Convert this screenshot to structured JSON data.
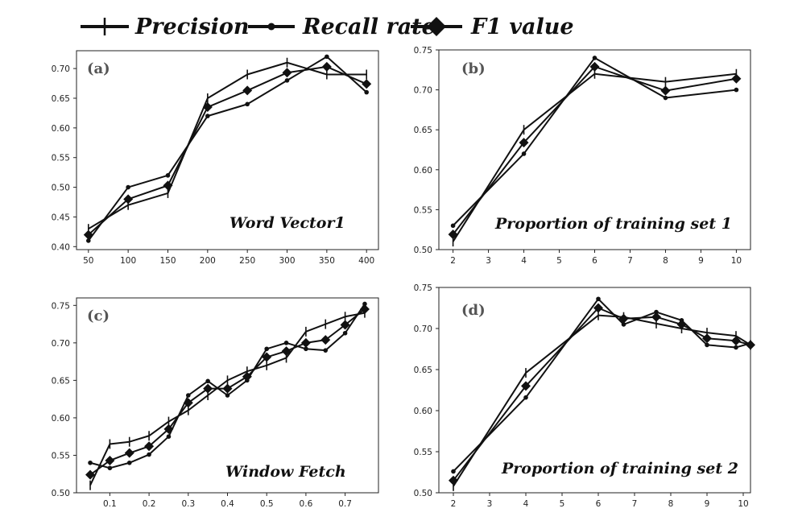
{
  "legend": {
    "precision": "Precision",
    "recall": "Recall rate",
    "f1": "F1 value"
  },
  "chart_data": [
    {
      "type": "line",
      "panel_label": "(a)",
      "title": "Word Vector1",
      "x": [
        50,
        100,
        150,
        200,
        250,
        300,
        350,
        400
      ],
      "xticks": [
        "50",
        "100",
        "150",
        "200",
        "250",
        "300",
        "350",
        "400"
      ],
      "xlim": [
        35,
        415
      ],
      "ylim": [
        0.395,
        0.73
      ],
      "yticks": [
        "0.40",
        "0.45",
        "0.50",
        "0.55",
        "0.60",
        "0.65",
        "0.70"
      ],
      "series": [
        {
          "name": "Precision",
          "values": [
            0.43,
            0.47,
            0.49,
            0.65,
            0.69,
            0.71,
            0.69,
            0.69
          ]
        },
        {
          "name": "Recall rate",
          "values": [
            0.41,
            0.5,
            0.52,
            0.62,
            0.64,
            0.68,
            0.72,
            0.66
          ]
        },
        {
          "name": "F1 value",
          "values": [
            0.42,
            0.48,
            0.503,
            0.635,
            0.663,
            0.693,
            0.703,
            0.674
          ]
        }
      ]
    },
    {
      "type": "line",
      "panel_label": "(b)",
      "title": "Proportion of training set 1",
      "x": [
        2,
        4,
        6,
        8,
        10
      ],
      "xticks": [
        "2",
        "3",
        "4",
        "5",
        "6",
        "7",
        "8",
        "9",
        "10"
      ],
      "xtick_values": [
        2,
        3,
        4,
        5,
        6,
        7,
        8,
        9,
        10
      ],
      "xlim": [
        1.6,
        10.4
      ],
      "ylim": [
        0.5,
        0.75
      ],
      "yticks": [
        "0.50",
        "0.55",
        "0.60",
        "0.65",
        "0.70",
        "0.75"
      ],
      "series": [
        {
          "name": "Precision",
          "values": [
            0.51,
            0.65,
            0.72,
            0.71,
            0.72
          ]
        },
        {
          "name": "Recall rate",
          "values": [
            0.53,
            0.62,
            0.74,
            0.69,
            0.7
          ]
        },
        {
          "name": "F1 value",
          "values": [
            0.519,
            0.634,
            0.729,
            0.699,
            0.714
          ]
        }
      ]
    },
    {
      "type": "line",
      "panel_label": "(c)",
      "title": "Window Fetch",
      "x": [
        0.05,
        0.1,
        0.15,
        0.2,
        0.25,
        0.3,
        0.35,
        0.4,
        0.45,
        0.5,
        0.55,
        0.6,
        0.65,
        0.7,
        0.75
      ],
      "xticks": [
        "0.1",
        "0.2",
        "0.3",
        "0.4",
        "0.5",
        "0.6",
        "0.7"
      ],
      "xtick_values": [
        0.1,
        0.2,
        0.3,
        0.4,
        0.5,
        0.6,
        0.7
      ],
      "xlim": [
        0.015,
        0.785
      ],
      "ylim": [
        0.5,
        0.76
      ],
      "yticks": [
        "0.50",
        "0.55",
        "0.60",
        "0.65",
        "0.70",
        "0.75"
      ],
      "series": [
        {
          "name": "Precision",
          "values": [
            0.51,
            0.565,
            0.568,
            0.576,
            0.595,
            0.61,
            0.63,
            0.65,
            0.662,
            0.67,
            0.68,
            0.715,
            0.725,
            0.735,
            0.74
          ]
        },
        {
          "name": "Recall rate",
          "values": [
            0.54,
            0.533,
            0.54,
            0.551,
            0.575,
            0.63,
            0.649,
            0.63,
            0.65,
            0.692,
            0.7,
            0.692,
            0.69,
            0.713,
            0.752
          ]
        },
        {
          "name": "F1 value",
          "values": [
            0.524,
            0.543,
            0.553,
            0.562,
            0.585,
            0.62,
            0.639,
            0.639,
            0.655,
            0.681,
            0.689,
            0.7,
            0.704,
            0.724,
            0.745
          ]
        }
      ]
    },
    {
      "type": "line",
      "panel_label": "(d)",
      "title": "Proportion of training set 2",
      "x": [
        2,
        4,
        6,
        6.7,
        7.6,
        8.3,
        9,
        9.8,
        10.2
      ],
      "xticks": [
        "2",
        "3",
        "4",
        "5",
        "6",
        "7",
        "8",
        "9",
        "10"
      ],
      "xtick_values": [
        2,
        3,
        4,
        5,
        6,
        7,
        8,
        9,
        10
      ],
      "xlim": [
        1.6,
        10.2
      ],
      "ylim": [
        0.5,
        0.75
      ],
      "yticks": [
        "0.50",
        "0.55",
        "0.60",
        "0.65",
        "0.70",
        "0.75"
      ],
      "series": [
        {
          "name": "Precision",
          "values": [
            0.508,
            0.646,
            0.716,
            0.714,
            0.706,
            0.7,
            0.695,
            0.691,
            0.68
          ]
        },
        {
          "name": "Recall rate",
          "values": [
            0.526,
            0.616,
            0.736,
            0.705,
            0.72,
            0.71,
            0.68,
            0.677,
            0.682
          ]
        },
        {
          "name": "F1 value",
          "values": [
            0.515,
            0.63,
            0.725,
            0.712,
            0.714,
            0.705,
            0.688,
            0.685,
            0.68
          ]
        }
      ]
    }
  ]
}
